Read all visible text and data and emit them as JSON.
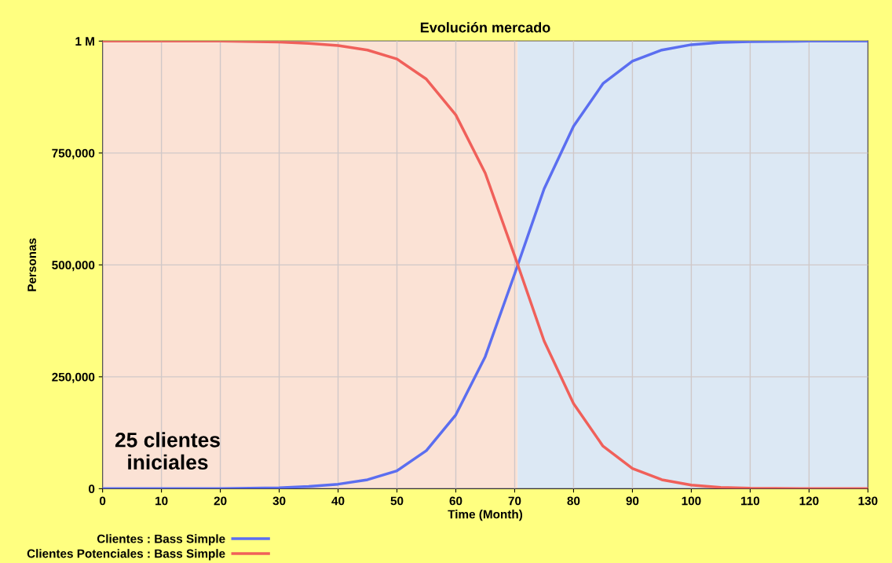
{
  "chart_data": {
    "type": "line",
    "title": "Evolución mercado",
    "xlabel": "Time (Month)",
    "ylabel": "Personas",
    "x": [
      0,
      10,
      20,
      30,
      35,
      40,
      45,
      50,
      55,
      60,
      65,
      70,
      75,
      80,
      85,
      90,
      95,
      100,
      105,
      110,
      120,
      130
    ],
    "series": [
      {
        "name": "Clientes : Bass Simple",
        "color": "#5b6ef0",
        "values": [
          0,
          0,
          0,
          2000,
          5000,
          10000,
          20000,
          40000,
          85000,
          165000,
          295000,
          480000,
          670000,
          810000,
          905000,
          955000,
          980000,
          992000,
          997000,
          999000,
          1000000,
          1000000
        ]
      },
      {
        "name": "Clientes Potenciales : Bass Simple",
        "color": "#f0605a",
        "values": [
          1000000,
          1000000,
          1000000,
          998000,
          995000,
          990000,
          980000,
          960000,
          915000,
          835000,
          705000,
          520000,
          330000,
          190000,
          95000,
          45000,
          20000,
          8000,
          3000,
          1000,
          0,
          0
        ]
      }
    ],
    "xlim": [
      0,
      130
    ],
    "xticks": [
      0,
      10,
      20,
      30,
      40,
      50,
      60,
      70,
      80,
      90,
      100,
      110,
      120,
      130
    ],
    "ylim": [
      0,
      1000000
    ],
    "yticks": [
      0,
      {
        "value": 250000,
        "label": "250,000"
      },
      {
        "value": 500000,
        "label": "500,000"
      },
      {
        "value": 750000,
        "label": "750,000"
      },
      {
        "value": 1000000,
        "label": "1 M"
      }
    ],
    "bands": [
      {
        "axis": "x",
        "from": 0,
        "to": 70.5,
        "color": "#fbe2d5"
      },
      {
        "axis": "x",
        "from": 70.5,
        "to": 130,
        "color": "#dce8f4"
      }
    ],
    "annotations": [
      "25 clientes\niniciales"
    ],
    "grid": true,
    "legend": "bottom"
  }
}
